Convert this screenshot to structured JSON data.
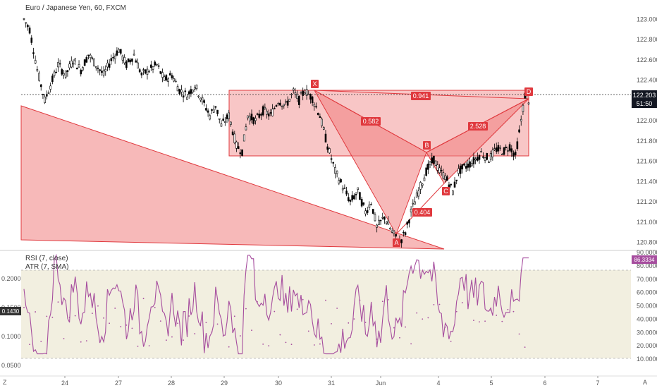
{
  "header": {
    "title": "Euro / Japanese Yen, 60, FXCM"
  },
  "price_panel": {
    "last_price": "122.203",
    "countdown": "51:50",
    "y_ticks": [
      "123.000",
      "122.800",
      "122.600",
      "122.400",
      "122.200",
      "122.000",
      "121.800",
      "121.600",
      "121.400",
      "121.200",
      "121.000",
      "120.800"
    ]
  },
  "indicator_panel": {
    "rsi_label": "RSI (7, close)",
    "atr_label": "ATR (7, SMA)",
    "rsi_value": "86.3334",
    "atr_value": "0.1430",
    "rsi_ticks": [
      "90.0000",
      "80.0000",
      "70.0000",
      "60.0000",
      "50.0000",
      "40.0000",
      "30.0000",
      "20.0000",
      "10.0000"
    ],
    "atr_ticks": [
      "0.2000",
      "0.1500",
      "0.1000",
      "0.0500"
    ],
    "rsi_band": [
      20,
      80
    ]
  },
  "x_axis": {
    "labels": [
      "24",
      "27",
      "28",
      "29",
      "30",
      "31",
      "Jun",
      "4",
      "5",
      "6",
      "7"
    ],
    "left_corner": "Z",
    "right_corner": "A"
  },
  "pattern": {
    "points": [
      {
        "label": "X",
        "value": 122.3
      },
      {
        "label": "A",
        "value": 120.8
      },
      {
        "label": "B",
        "value": 121.65
      },
      {
        "label": "C",
        "value": 121.28
      },
      {
        "label": "D",
        "value": 122.25
      }
    ],
    "ratios": [
      "0.582",
      "0.404",
      "2.528",
      "0.941"
    ]
  },
  "colors": {
    "bull": "#000000",
    "bear": "#000000",
    "pattern_fill": "#f08080",
    "pattern_stroke": "#e0393e",
    "rsi_line": "#a64d9e",
    "band_fill": "#f2efe0",
    "price_tag": "#131722"
  },
  "chart_data": {
    "type": "candlestick",
    "title": "Euro / Japanese Yen, 60, FXCM",
    "ylim": [
      120.72,
      123.12
    ],
    "x_labels": [
      "24",
      "27",
      "28",
      "29",
      "30",
      "31",
      "Jun",
      "4",
      "5",
      "6",
      "7"
    ],
    "last": 122.203,
    "path": [
      [
        0,
        123.0
      ],
      [
        3,
        122.9
      ],
      [
        7,
        122.5
      ],
      [
        11,
        122.2
      ],
      [
        14,
        122.35
      ],
      [
        18,
        122.55
      ],
      [
        22,
        122.45
      ],
      [
        26,
        122.6
      ],
      [
        30,
        122.5
      ],
      [
        34,
        122.65
      ],
      [
        38,
        122.55
      ],
      [
        42,
        122.45
      ],
      [
        46,
        122.6
      ],
      [
        50,
        122.7
      ],
      [
        54,
        122.55
      ],
      [
        58,
        122.65
      ],
      [
        62,
        122.45
      ],
      [
        66,
        122.5
      ],
      [
        70,
        122.55
      ],
      [
        74,
        122.4
      ],
      [
        78,
        122.45
      ],
      [
        82,
        122.3
      ],
      [
        86,
        122.25
      ],
      [
        90,
        122.35
      ],
      [
        94,
        122.2
      ],
      [
        98,
        122.05
      ],
      [
        101,
        122.15
      ],
      [
        104,
        121.95
      ],
      [
        108,
        122.05
      ],
      [
        112,
        121.75
      ],
      [
        115,
        121.7
      ],
      [
        118,
        122.05
      ],
      [
        122,
        122.0
      ],
      [
        126,
        122.1
      ],
      [
        130,
        122.05
      ],
      [
        134,
        122.2
      ],
      [
        138,
        122.15
      ],
      [
        142,
        122.28
      ],
      [
        145,
        122.2
      ],
      [
        148,
        122.3
      ],
      [
        152,
        122.22
      ],
      [
        156,
        122.05
      ],
      [
        160,
        121.75
      ],
      [
        164,
        121.5
      ],
      [
        168,
        121.35
      ],
      [
        172,
        121.2
      ],
      [
        176,
        121.3
      ],
      [
        180,
        121.1
      ],
      [
        183,
        121.2
      ],
      [
        186,
        120.95
      ],
      [
        190,
        121.05
      ],
      [
        194,
        120.9
      ],
      [
        198,
        120.8
      ],
      [
        201,
        120.9
      ],
      [
        204,
        121.1
      ],
      [
        208,
        121.3
      ],
      [
        212,
        121.5
      ],
      [
        216,
        121.62
      ],
      [
        219,
        121.5
      ],
      [
        222,
        121.45
      ],
      [
        226,
        121.3
      ],
      [
        229,
        121.5
      ],
      [
        233,
        121.55
      ],
      [
        237,
        121.6
      ],
      [
        241,
        121.68
      ],
      [
        245,
        121.62
      ],
      [
        249,
        121.72
      ],
      [
        253,
        121.7
      ],
      [
        256,
        121.75
      ],
      [
        259,
        121.65
      ],
      [
        262,
        122.0
      ],
      [
        264,
        122.25
      ],
      [
        266,
        122.2
      ]
    ],
    "indicators": {
      "rsi_period": 7,
      "atr_period": 7,
      "rsi_last": 86.3334,
      "atr_last": 0.143
    }
  }
}
